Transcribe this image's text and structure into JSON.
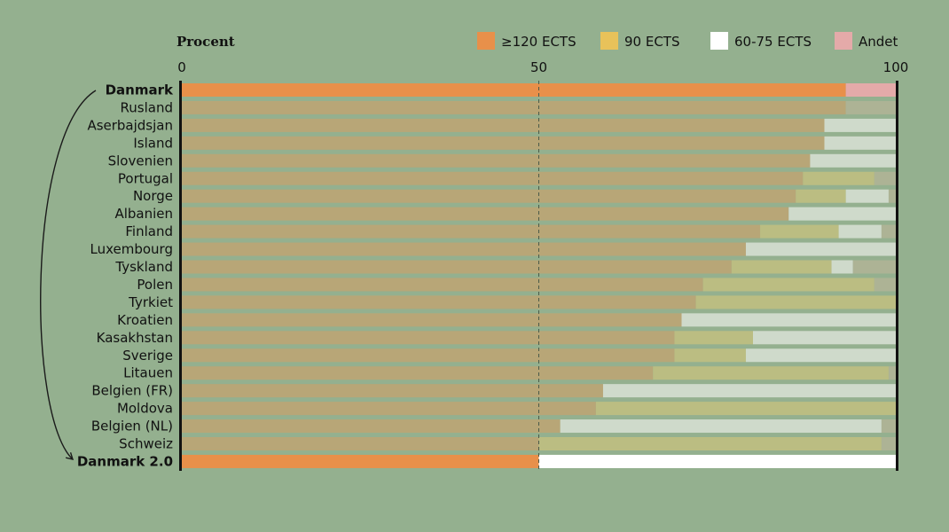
{
  "chart_data": {
    "type": "bar",
    "stacked": true,
    "orientation": "horizontal",
    "axis_title": "Procent",
    "xlim": [
      0,
      100
    ],
    "xticks": [
      "0",
      "50",
      "100"
    ],
    "reference_line": 50,
    "legend_position": "top-right",
    "categories": [
      "Danmark",
      "Rusland",
      "Aserbajdsjan",
      "Island",
      "Slovenien",
      "Portugal",
      "Norge",
      "Albanien",
      "Finland",
      "Luxembourg",
      "Tyskland",
      "Polen",
      "Tyrkiet",
      "Kroatien",
      "Kasakhstan",
      "Sverige",
      "Litauen",
      "Belgien (FR)",
      "Moldova",
      "Belgien (NL)",
      "Schweiz",
      "Danmark 2.0"
    ],
    "highlighted_categories": [
      "Danmark",
      "Danmark 2.0"
    ],
    "series": [
      {
        "name": "≥120 ECTS",
        "color": "#e8904a",
        "muted_color": "#b8a677",
        "values": [
          93,
          93,
          90,
          90,
          88,
          87,
          86,
          85,
          81,
          79,
          77,
          73,
          72,
          70,
          69,
          69,
          66,
          59,
          58,
          53,
          50,
          50
        ]
      },
      {
        "name": "90 ECTS",
        "color": "#e8c25a",
        "muted_color": "#bbbd82",
        "values": [
          0,
          0,
          0,
          0,
          0,
          10,
          7,
          0,
          11,
          0,
          14,
          24,
          28,
          0,
          11,
          10,
          33,
          0,
          42,
          0,
          48,
          0
        ]
      },
      {
        "name": "60-75 ECTS",
        "color": "#ffffff",
        "muted_color": "#cfdacb",
        "values": [
          0,
          0,
          10,
          10,
          12,
          0,
          6,
          15,
          6,
          21,
          3,
          0,
          0,
          30,
          20,
          21,
          0,
          41,
          0,
          45,
          0,
          50
        ]
      },
      {
        "name": "Andet",
        "color": "#e4aaa9",
        "muted_color": "#adb395",
        "values": [
          7,
          7,
          0,
          0,
          0,
          3,
          1,
          0,
          2,
          0,
          6,
          3,
          0,
          0,
          0,
          0,
          1,
          0,
          0,
          2,
          2,
          0
        ]
      }
    ]
  }
}
